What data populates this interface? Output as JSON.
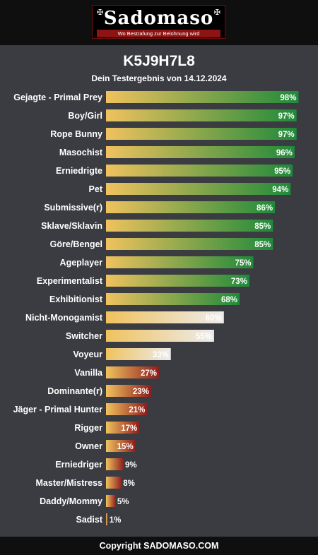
{
  "header": {
    "logo_text": "Sadomaso",
    "logo_tagline": "Wo Bestrafung zur Belohnung wird",
    "logo_ornament": "✠"
  },
  "title": "K5J9H7L8",
  "subtitle": "Dein Testergebnis von 14.12.2024",
  "footer": "Copyright SADOMASO.COM",
  "colors": {
    "background": "#3a3c42",
    "bar_start": "#f0c25e",
    "high_end": "#1f8a3a",
    "mid_end": "#ececec",
    "low_end": "#8e1c1c"
  },
  "chart_data": {
    "type": "bar",
    "orientation": "horizontal",
    "xlim": [
      0,
      100
    ],
    "unit": "%",
    "categories": [
      "Gejagte - Primal Prey",
      "Boy/Girl",
      "Rope Bunny",
      "Masochist",
      "Erniedrigte",
      "Pet",
      "Submissive(r)",
      "Sklave/Sklavin",
      "Göre/Bengel",
      "Ageplayer",
      "Experimentalist",
      "Exhibitionist",
      "Nicht-Monogamist",
      "Switcher",
      "Voyeur",
      "Vanilla",
      "Dominante(r)",
      "Jäger - Primal Hunter",
      "Rigger",
      "Owner",
      "Erniedriger",
      "Master/Mistress",
      "Daddy/Mommy",
      "Sadist"
    ],
    "values": [
      98,
      97,
      97,
      96,
      95,
      94,
      86,
      85,
      85,
      75,
      73,
      68,
      60,
      55,
      33,
      27,
      23,
      21,
      17,
      15,
      9,
      8,
      5,
      1
    ],
    "value_labels": [
      "98%",
      "97%",
      "97%",
      "96%",
      "95%",
      "94%",
      "86%",
      "85%",
      "85%",
      "75%",
      "73%",
      "68%",
      "60%",
      "55%",
      "33%",
      "27%",
      "23%",
      "21%",
      "17%",
      "15%",
      "9%",
      "8%",
      "5%",
      "1%"
    ]
  }
}
